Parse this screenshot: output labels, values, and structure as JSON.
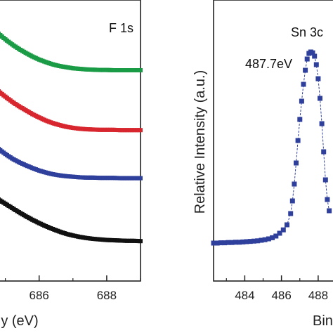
{
  "chart_data": [
    {
      "type": "scatter",
      "title": "F 1s",
      "xlabel": "y (eV)",
      "ylabel": "",
      "xlim": [
        684.8,
        689.0
      ],
      "ylim": [
        0,
        1.0
      ],
      "x_ticks": [
        "686",
        "688"
      ],
      "series": [
        {
          "color": "#1a9b45",
          "x": [
            684.8,
            685.0,
            685.2,
            685.4,
            685.6,
            685.8,
            686.0,
            686.2,
            686.4,
            686.6,
            686.8,
            687.0,
            687.2,
            687.4,
            687.6,
            687.8,
            688.0,
            688.2,
            688.4,
            688.6,
            688.8,
            689.0
          ],
          "y": [
            0.88,
            0.86,
            0.842,
            0.826,
            0.812,
            0.799,
            0.788,
            0.779,
            0.771,
            0.765,
            0.761,
            0.757,
            0.755,
            0.753,
            0.752,
            0.751,
            0.751,
            0.75,
            0.75,
            0.75,
            0.75,
            0.75
          ]
        },
        {
          "color": "#d8262e",
          "x": [
            684.8,
            685.0,
            685.2,
            685.4,
            685.6,
            685.8,
            686.0,
            686.2,
            686.4,
            686.6,
            686.8,
            687.0,
            687.2,
            687.4,
            687.6,
            687.8,
            688.0,
            688.2,
            688.4,
            688.6,
            688.8,
            689.0
          ],
          "y": [
            0.675,
            0.656,
            0.638,
            0.622,
            0.608,
            0.594,
            0.582,
            0.571,
            0.562,
            0.555,
            0.549,
            0.545,
            0.542,
            0.54,
            0.539,
            0.538,
            0.538,
            0.538,
            0.537,
            0.537,
            0.537,
            0.537
          ]
        },
        {
          "color": "#2f3f9c",
          "x": [
            684.8,
            685.0,
            685.2,
            685.4,
            685.6,
            685.8,
            686.0,
            686.2,
            686.4,
            686.6,
            686.8,
            687.0,
            687.2,
            687.4,
            687.6,
            687.8,
            688.0,
            688.2,
            688.4,
            688.6,
            688.8,
            689.0
          ],
          "y": [
            0.47,
            0.452,
            0.436,
            0.423,
            0.412,
            0.402,
            0.393,
            0.386,
            0.38,
            0.376,
            0.373,
            0.371,
            0.369,
            0.368,
            0.368,
            0.367,
            0.367,
            0.367,
            0.366,
            0.366,
            0.366,
            0.366
          ]
        },
        {
          "color": "#111111",
          "x": [
            684.8,
            685.0,
            685.2,
            685.4,
            685.6,
            685.8,
            686.0,
            686.2,
            686.4,
            686.6,
            686.8,
            687.0,
            687.2,
            687.4,
            687.6,
            687.8,
            688.0,
            688.2,
            688.4,
            688.6,
            688.8,
            689.0
          ],
          "y": [
            0.29,
            0.275,
            0.26,
            0.245,
            0.231,
            0.218,
            0.206,
            0.195,
            0.185,
            0.176,
            0.168,
            0.162,
            0.157,
            0.153,
            0.15,
            0.148,
            0.146,
            0.145,
            0.144,
            0.143,
            0.143,
            0.142
          ]
        }
      ]
    },
    {
      "type": "scatter",
      "title": "Sn 3c",
      "xlabel": "Bin",
      "ylabel": "Relative Intensity (a.u.)",
      "xlim": [
        482.3,
        489.0
      ],
      "ylim": [
        0,
        1.0
      ],
      "x_ticks": [
        "484",
        "486",
        "488"
      ],
      "annotations": [
        {
          "text": "487.7eV"
        }
      ],
      "series": [
        {
          "color": "#2f3f9c",
          "x": [
            482.3,
            482.5,
            482.7,
            482.9,
            483.1,
            483.3,
            483.5,
            483.7,
            483.9,
            484.1,
            484.3,
            484.5,
            484.7,
            484.9,
            485.1,
            485.3,
            485.5,
            485.7,
            485.9,
            486.1,
            486.3,
            486.5,
            486.6,
            486.7,
            486.8,
            486.9,
            487.0,
            487.1,
            487.2,
            487.3,
            487.4,
            487.5,
            487.6,
            487.7,
            487.8,
            487.9,
            488.0,
            488.1,
            488.2,
            488.3,
            488.4,
            488.5,
            488.6
          ],
          "y": [
            0.135,
            0.135,
            0.136,
            0.136,
            0.137,
            0.137,
            0.138,
            0.138,
            0.139,
            0.14,
            0.141,
            0.142,
            0.143,
            0.145,
            0.147,
            0.15,
            0.154,
            0.16,
            0.17,
            0.182,
            0.2,
            0.24,
            0.285,
            0.345,
            0.42,
            0.5,
            0.575,
            0.64,
            0.7,
            0.75,
            0.79,
            0.81,
            0.815,
            0.812,
            0.8,
            0.77,
            0.72,
            0.65,
            0.56,
            0.46,
            0.36,
            0.29,
            0.25
          ]
        }
      ]
    }
  ]
}
